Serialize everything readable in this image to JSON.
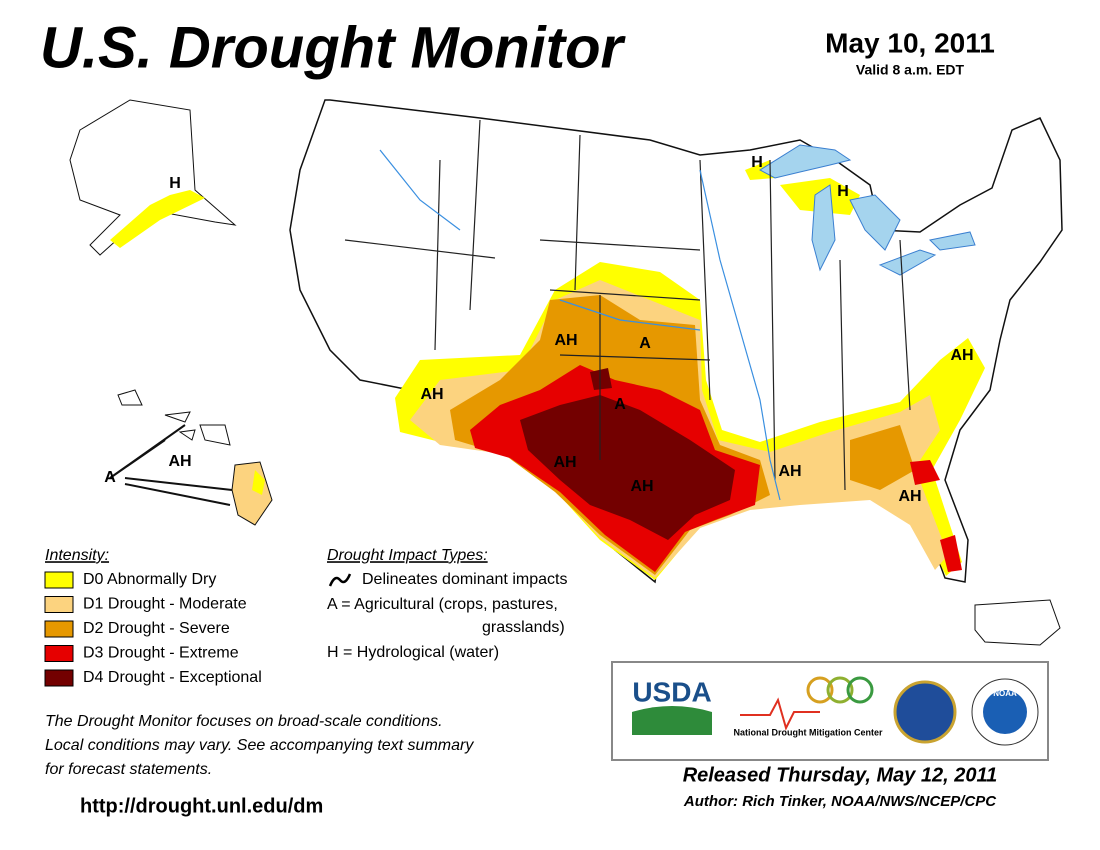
{
  "header": {
    "title": "U.S. Drought Monitor",
    "date": "May 10, 2011",
    "valid": "Valid 8 a.m. EDT"
  },
  "legend": {
    "title": "Intensity:",
    "items": [
      {
        "label": "D0 Abnormally Dry",
        "color": "#ffff00"
      },
      {
        "label": "D1 Drought - Moderate",
        "color": "#fcd37f"
      },
      {
        "label": "D2 Drought - Severe",
        "color": "#e69800"
      },
      {
        "label": "D3 Drought - Extreme",
        "color": "#e60000"
      },
      {
        "label": "D4 Drought - Exceptional",
        "color": "#730000"
      }
    ]
  },
  "impacts": {
    "title": "Drought Impact Types:",
    "lines": [
      "Delineates dominant impacts",
      "A = Agricultural (crops, pastures,",
      "grasslands)",
      "H = Hydrological (water)"
    ]
  },
  "note": [
    "The Drought Monitor focuses on broad-scale conditions.",
    "Local conditions may vary. See accompanying text summary",
    "for forecast statements."
  ],
  "url": "http://drought.unl.edu/dm",
  "map_labels": [
    "AH",
    "A",
    "AH",
    "A",
    "AH",
    "AH",
    "AH",
    "AH",
    "AH",
    "H",
    "H",
    "H",
    "A",
    "AH"
  ],
  "logos": [
    "USDA",
    "National Drought Mitigation Center",
    "NOAA"
  ],
  "footer": {
    "released": "Released Thursday, May 12, 2011",
    "author": "Author: Rich Tinker, NOAA/NWS/NCEP/CPC"
  }
}
